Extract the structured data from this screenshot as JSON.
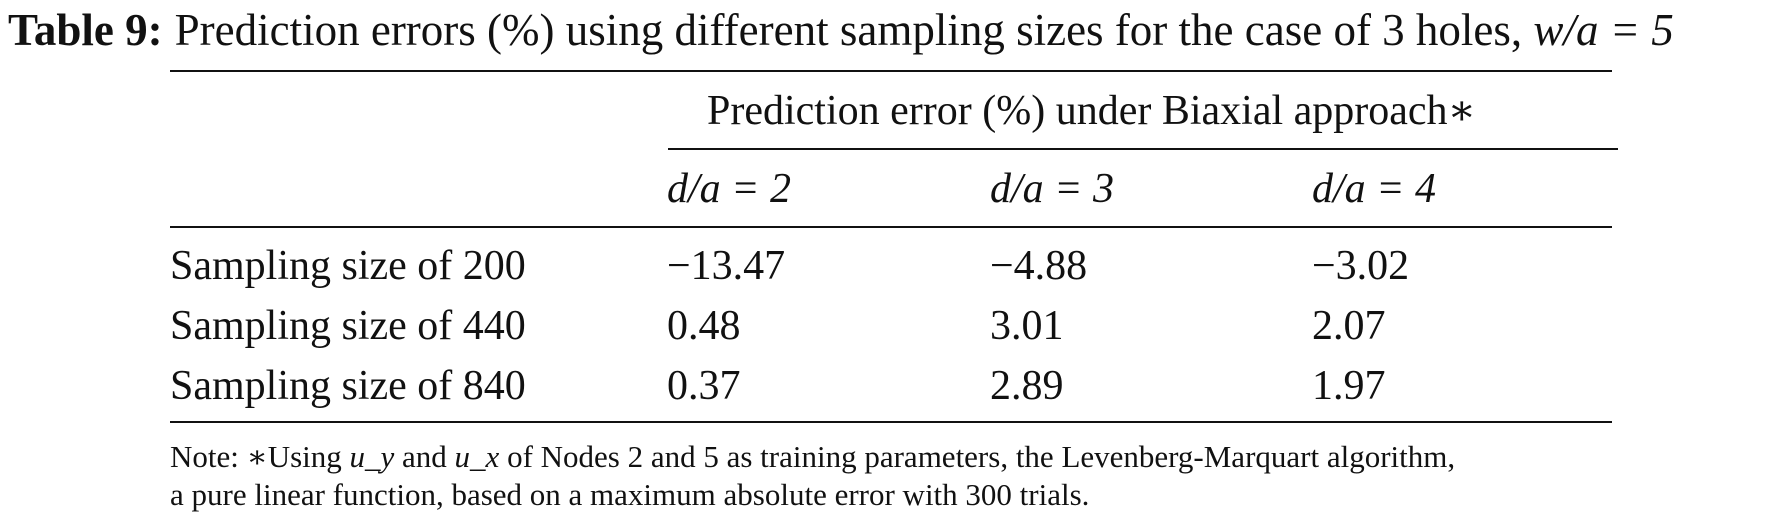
{
  "table": {
    "caption_label": "Table 9:",
    "caption_text": "Prediction errors (%) using different sampling sizes for the case of 3 holes, ",
    "caption_math": "w/a = 5",
    "group_header": "Prediction error (%) under Biaxial approach∗",
    "columns": [
      "d/a = 2",
      "d/a = 3",
      "d/a = 4"
    ],
    "rows": [
      {
        "label": "Sampling size of 200",
        "values": [
          "−13.47",
          "−4.88",
          "−3.02"
        ]
      },
      {
        "label": "Sampling size of 440",
        "values": [
          "0.48",
          "3.01",
          "2.07"
        ]
      },
      {
        "label": "Sampling size of 840",
        "values": [
          "0.37",
          "2.89",
          "1.97"
        ]
      }
    ],
    "note": {
      "line1_prefix": "Note: ∗Using ",
      "u_y": "u_y",
      "line1_mid": " and ",
      "u_x": "u_x",
      "line1_suffix": " of Nodes 2 and 5 as training parameters, the Levenberg-Marquart algorithm,",
      "line2": "a pure linear function, based on a maximum absolute error with 300 trials."
    }
  }
}
